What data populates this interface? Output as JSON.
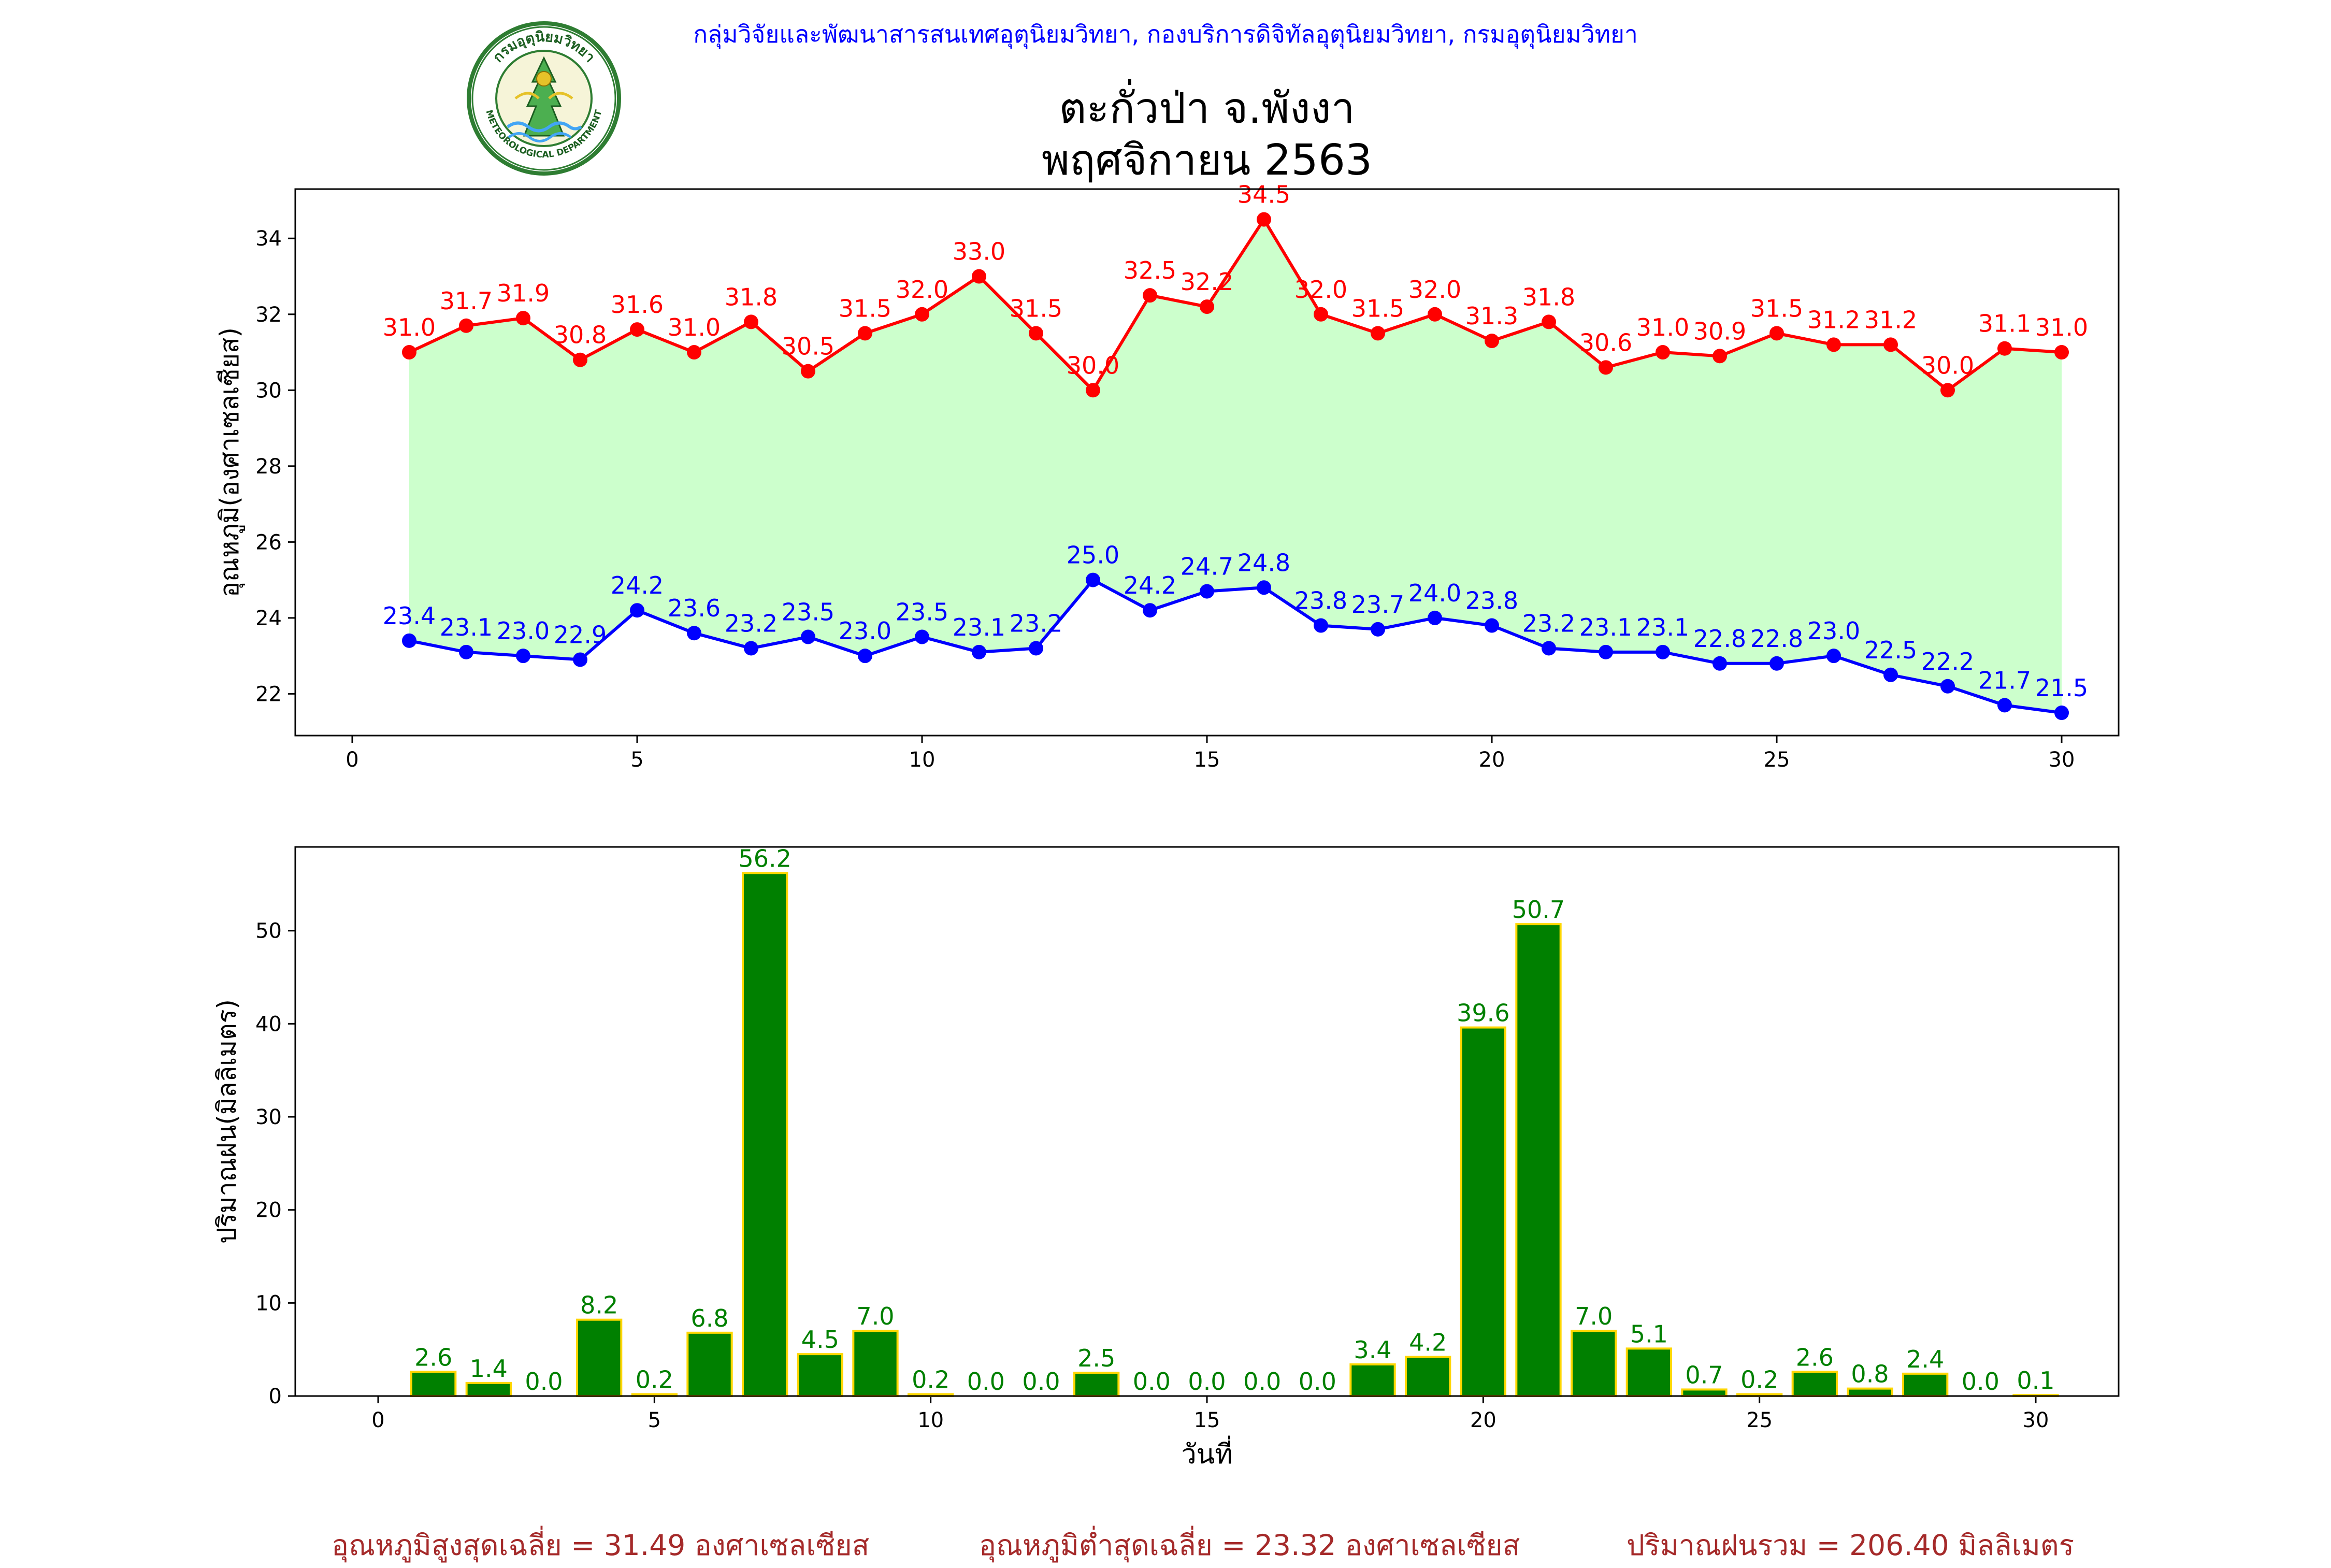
{
  "header": {
    "agency": "กลุ่มวิจัยและพัฒนาสารสนเทศอุตุนิยมวิทยา, กองบริการดิจิทัลอุตุนิยมวิทยา, กรมอุตุนิยมวิทยา",
    "station": "ตะกั่วป่า จ.พังงา",
    "period": "พฤศจิกายน 2563",
    "logo_top_text": "กรมอุตุนิยมวิทยา",
    "logo_bottom_text": "METEOROLOGICAL DEPARTMENT"
  },
  "colors": {
    "max_temp": "#ff0000",
    "min_temp": "#0000ff",
    "fill": "#ccffcc",
    "rain_bar": "#008000",
    "rain_edge": "#ffd700",
    "rain_label": "#008000",
    "footer": "#a52a2a",
    "agency": "#0000ff"
  },
  "chart_data": [
    {
      "type": "line",
      "ylabel": "อุณหภูมิ(องศาเซลเซียส)",
      "xlim": [
        -1,
        31
      ],
      "ylim": [
        20.9,
        35.3
      ],
      "xticks": [
        0,
        5,
        10,
        15,
        20,
        25,
        30
      ],
      "yticks": [
        22,
        24,
        26,
        28,
        30,
        32,
        34
      ],
      "x": [
        1,
        2,
        3,
        4,
        5,
        6,
        7,
        8,
        9,
        10,
        11,
        12,
        13,
        14,
        15,
        16,
        17,
        18,
        19,
        20,
        21,
        22,
        23,
        24,
        25,
        26,
        27,
        28,
        29,
        30
      ],
      "series": [
        {
          "key": "max",
          "values": [
            31.0,
            31.7,
            31.9,
            30.8,
            31.6,
            31.0,
            31.8,
            30.5,
            31.5,
            32.0,
            33.0,
            31.5,
            30.0,
            32.5,
            32.2,
            34.5,
            32.0,
            31.5,
            32.0,
            31.3,
            31.8,
            30.6,
            31.0,
            30.9,
            31.5,
            31.2,
            31.2,
            30.0,
            31.1,
            31.0
          ],
          "labels": [
            "31.0",
            "31.7",
            "31.9",
            "30.8",
            "31.6",
            "31.0",
            "31.8",
            "30.5",
            "31.5",
            "32.0",
            "33.0",
            "31.5",
            "30.0",
            "32.5",
            "32.2",
            "34.5",
            "32.0",
            "31.5",
            "32.0",
            "31.3",
            "31.8",
            "30.6",
            "31.0",
            "30.9",
            "31.5",
            "31.2",
            "31.2",
            "30.0",
            "31.1",
            "31.0"
          ]
        },
        {
          "key": "min",
          "values": [
            23.4,
            23.1,
            23.0,
            22.9,
            24.2,
            23.6,
            23.2,
            23.5,
            23.0,
            23.5,
            23.1,
            23.2,
            25.0,
            24.2,
            24.7,
            24.8,
            23.8,
            23.7,
            24.0,
            23.8,
            23.2,
            23.1,
            23.1,
            22.8,
            22.8,
            23.0,
            22.5,
            22.2,
            21.7,
            21.5
          ],
          "labels": [
            "23.4",
            "23.1",
            "23.0",
            "22.9",
            "24.2",
            "23.6",
            "23.2",
            "23.5",
            "23.0",
            "23.5",
            "23.1",
            "23.2",
            "25.0",
            "24.2",
            "24.7",
            "24.8",
            "23.8",
            "23.7",
            "24.0",
            "23.8",
            "23.2",
            "23.1",
            "23.1",
            "22.8",
            "22.8",
            "23.0",
            "22.5",
            "22.2",
            "21.7",
            "21.5"
          ]
        }
      ],
      "fill_between": true
    },
    {
      "type": "bar",
      "xlabel": "วันที่",
      "ylabel": "ปริมาณฝน(มิลลิเมตร)",
      "xlim": [
        -1.5,
        31.5
      ],
      "ylim": [
        0,
        59
      ],
      "xticks": [
        0,
        5,
        10,
        15,
        20,
        25,
        30
      ],
      "yticks": [
        0,
        10,
        20,
        30,
        40,
        50
      ],
      "x": [
        1,
        2,
        3,
        4,
        5,
        6,
        7,
        8,
        9,
        10,
        11,
        12,
        13,
        14,
        15,
        16,
        17,
        18,
        19,
        20,
        21,
        22,
        23,
        24,
        25,
        26,
        27,
        28,
        29,
        30
      ],
      "values": [
        2.6,
        1.4,
        0.0,
        8.2,
        0.2,
        6.8,
        56.2,
        4.5,
        7.0,
        0.2,
        0.0,
        0.0,
        2.5,
        0.0,
        0.0,
        0.0,
        0.0,
        3.4,
        4.2,
        39.6,
        50.7,
        7.0,
        5.1,
        0.7,
        0.2,
        2.6,
        0.8,
        2.4,
        0.0,
        0.1
      ],
      "labels": [
        "2.6",
        "1.4",
        "0.0",
        "8.2",
        "0.2",
        "6.8",
        "56.2",
        "4.5",
        "7.0",
        "0.2",
        "0.0",
        "0.0",
        "2.5",
        "0.0",
        "0.0",
        "0.0",
        "0.0",
        "3.4",
        "4.2",
        "39.6",
        "50.7",
        "7.0",
        "5.1",
        "0.7",
        "0.2",
        "2.6",
        "0.8",
        "2.4",
        "0.0",
        "0.1"
      ]
    }
  ],
  "footer": {
    "avg_max": "อุณหภูมิสูงสุดเฉลี่ย = 31.49 องศาเซลเซียส",
    "avg_min": "อุณหภูมิต่ำสุดเฉลี่ย = 23.32 องศาเซลเซียส",
    "total_rain": "ปริมาณฝนรวม = 206.40 มิลลิเมตร"
  }
}
